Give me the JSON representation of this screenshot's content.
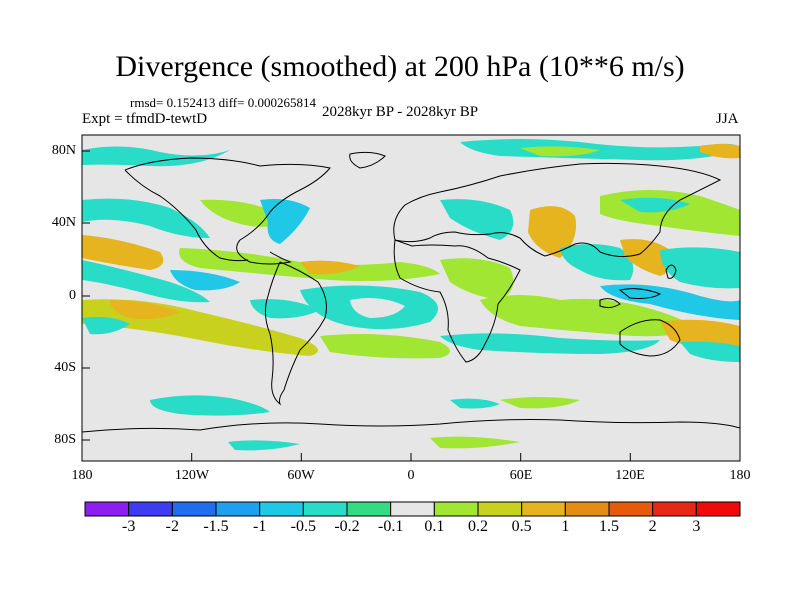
{
  "title": "Divergence (smoothed) at 200 hPa (10**6 m/s)",
  "stats": "rmsd= 0.152413 diff= 0.000265814",
  "expt": "Expt = tfmdD-tewtD",
  "period": "2028kyr BP - 2028kyr BP",
  "season": "JJA",
  "lat_labels": [
    "80N",
    "40N",
    "0",
    "40S",
    "80S"
  ],
  "lon_labels": [
    "180",
    "120W",
    "60W",
    "0",
    "60E",
    "120E",
    "180"
  ],
  "colorbar": {
    "labels": [
      "-3",
      "-2",
      "-1.5",
      "-1",
      "-0.5",
      "-0.2",
      "-0.1",
      "0.1",
      "0.2",
      "0.5",
      "1",
      "1.5",
      "2",
      "3"
    ],
    "colors": [
      "#8c1ef0",
      "#3c3cf0",
      "#1e6ef0",
      "#1ea0f0",
      "#1ec8e6",
      "#28dcc8",
      "#32dc82",
      "#e6e6e6",
      "#a0e632",
      "#c8d21e",
      "#e6b41e",
      "#e68c14",
      "#e65a0a",
      "#e62814",
      "#f00a0a"
    ]
  },
  "colors": {
    "neutral": "#e6e6e6",
    "neg1": "#32dc82",
    "neg2": "#28dcc8",
    "neg3": "#1ec8e6",
    "pos1": "#a0e632",
    "pos2": "#c8d21e",
    "pos3": "#e6b41e"
  }
}
